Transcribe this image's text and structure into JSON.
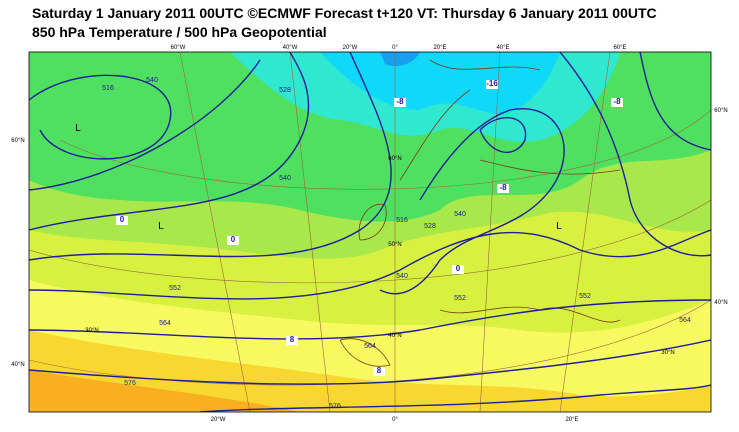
{
  "header": {
    "title": "Saturday 1 January 2011 00UTC ©ECMWF Forecast t+120 VT: Thursday 6 January 2011 00UTC",
    "subtitle": "850 hPa Temperature / 500 hPa Geopotential"
  },
  "map": {
    "lon_labels_top": [
      "60°W",
      "40°W",
      "20°W",
      "0°",
      "20°E",
      "40°E",
      "60°E"
    ],
    "lon_labels_bottom": [
      "20°W",
      "0°",
      "20°E"
    ],
    "lat_labels_left": [
      "60°N",
      "40°N"
    ],
    "lat_labels_right": [
      "60°N",
      "40°N"
    ],
    "lat_labels_inner": [
      "60°N",
      "50°N",
      "40°N",
      "30°N",
      "30°N"
    ],
    "geopotential_labels": [
      "540",
      "516",
      "528",
      "540",
      "552",
      "564",
      "576",
      "576",
      "564",
      "552",
      "540",
      "528",
      "516",
      "540",
      "552",
      "564"
    ],
    "temperature_labels": [
      "0",
      "0",
      "8",
      "8",
      "0",
      "-8",
      "-8",
      "-16",
      "-8"
    ],
    "lows": [
      "L",
      "L",
      "L"
    ]
  }
}
